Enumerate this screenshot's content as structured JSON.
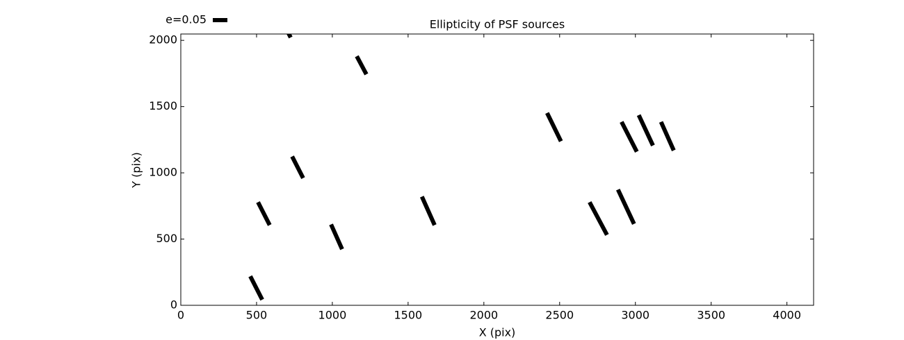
{
  "chart_data": {
    "type": "quiver",
    "title": "Ellipticity of PSF sources",
    "x_label": "X (pix)",
    "y_label": "Y (pix)",
    "xlim": [
      0,
      4176
    ],
    "ylim": [
      0,
      2048
    ],
    "xticks": [
      0,
      500,
      1000,
      1500,
      2000,
      2500,
      3000,
      3500,
      4000
    ],
    "yticks": [
      0,
      500,
      1000,
      1500,
      2000
    ],
    "key": {
      "label": "e=0.05",
      "value": 0.05
    },
    "color": "#000000",
    "series": [
      {
        "x": [
          498,
          548,
          771,
          1028,
          690,
          1193,
          1633,
          2463,
          2755,
          2938,
          2959,
          3069,
          3211
        ],
        "y": [
          131,
          692,
          1042,
          517,
          2100,
          1812,
          713,
          1345,
          655,
          744,
          1272,
          1321,
          1277
        ],
        "e": [
          0.09,
          0.088,
          0.083,
          0.093,
          0.08,
          0.07,
          0.107,
          0.108,
          0.127,
          0.13,
          0.115,
          0.115,
          0.107
        ],
        "angle": [
          -63,
          -63,
          -63,
          -66,
          -63,
          -62,
          -66,
          -64,
          -62,
          -65,
          -63,
          -65,
          -66
        ]
      }
    ]
  }
}
